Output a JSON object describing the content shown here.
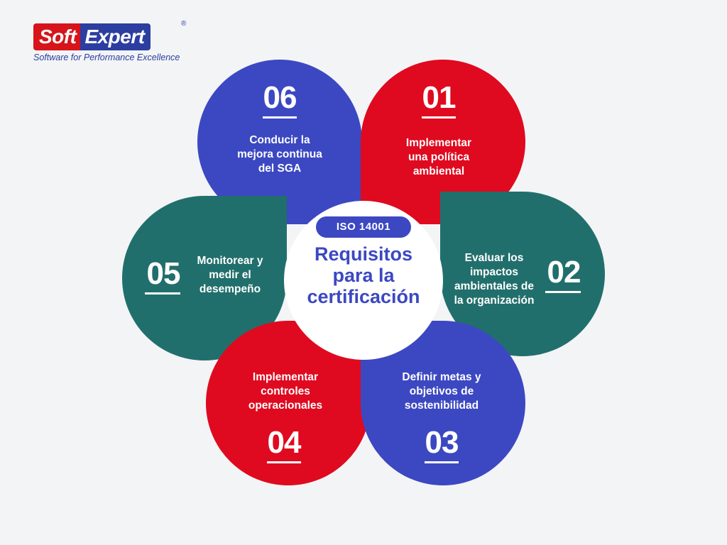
{
  "logo": {
    "soft": "Soft",
    "expert": "Expert",
    "registered": "®",
    "tagline": "Software for Performance Excellence",
    "colors": {
      "red": "#d7141a",
      "blue": "#2c3e9f"
    }
  },
  "center": {
    "badge": "ISO 14001",
    "title_lines": [
      "Requisitos",
      "para la",
      "certificación"
    ]
  },
  "steps": [
    {
      "number": "01",
      "lines": [
        "Implementar",
        "una política",
        "ambiental"
      ],
      "color": "#df0a1f"
    },
    {
      "number": "02",
      "lines": [
        "Evaluar los",
        "impactos",
        "ambientales de",
        "la organización"
      ],
      "color": "#216f6c"
    },
    {
      "number": "03",
      "lines": [
        "Definir metas y",
        "objetivos de",
        "sostenibilidad"
      ],
      "color": "#3c48c2"
    },
    {
      "number": "04",
      "lines": [
        "Implementar",
        "controles",
        "operacionales"
      ],
      "color": "#df0a1f"
    },
    {
      "number": "05",
      "lines": [
        "Monitorear y",
        "medir el",
        "desempeño"
      ],
      "color": "#216f6c"
    },
    {
      "number": "06",
      "lines": [
        "Conducir la",
        "mejora continua",
        "del SGA"
      ],
      "color": "#3c48c2"
    }
  ]
}
